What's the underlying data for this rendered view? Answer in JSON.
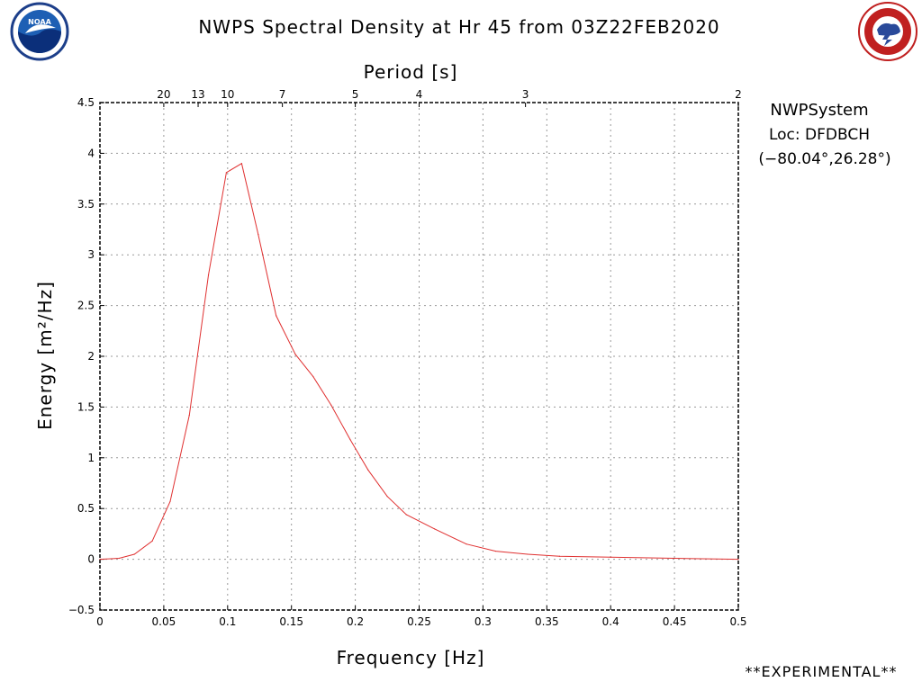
{
  "header": {
    "title": "NWPS Spectral Density at Hr 45 from 03Z22FEB2020",
    "left_logo": "noaa-logo",
    "right_logo": "nws-logo",
    "left_logo_text": "NOAA",
    "right_logo_text": "NATIONAL WEATHER SERVICE"
  },
  "info": {
    "system": "NWPSystem",
    "location": "Loc: DFDBCH",
    "coords": "(−80.04°,26.28°)"
  },
  "footer": {
    "note": "**EXPERIMENTAL**"
  },
  "chart_data": {
    "type": "line",
    "title": "NWPS Spectral Density at Hr 45 from 03Z22FEB2020",
    "xlabel": "Frequency [Hz]",
    "ylabel": "Energy [m²/Hz]",
    "x2label": "Period [s]",
    "xlim": [
      0,
      0.5
    ],
    "ylim": [
      -0.5,
      4.5
    ],
    "xticks": [
      0,
      0.05,
      0.1,
      0.15,
      0.2,
      0.25,
      0.3,
      0.35,
      0.4,
      0.45,
      0.5
    ],
    "xtick_labels": [
      "0",
      "0.05",
      "0.1",
      "0.15",
      "0.2",
      "0.25",
      "0.3",
      "0.35",
      "0.4",
      "0.45",
      "0.5"
    ],
    "yticks": [
      -0.5,
      0,
      0.5,
      1,
      1.5,
      2,
      2.5,
      3,
      3.5,
      4,
      4.5
    ],
    "ytick_labels": [
      "−0.5",
      "0",
      "0.5",
      "1",
      "1.5",
      "2",
      "2.5",
      "3",
      "3.5",
      "4",
      "4.5"
    ],
    "period_ticks": [
      {
        "freq": 0.05,
        "label": "20"
      },
      {
        "freq": 0.0769,
        "label": "13"
      },
      {
        "freq": 0.1,
        "label": "10"
      },
      {
        "freq": 0.1429,
        "label": "7"
      },
      {
        "freq": 0.2,
        "label": "5"
      },
      {
        "freq": 0.25,
        "label": "4"
      },
      {
        "freq": 0.3333,
        "label": "3"
      },
      {
        "freq": 0.5,
        "label": "2"
      }
    ],
    "grid": true,
    "color": "#e03030",
    "x": [
      0,
      0.015,
      0.027,
      0.041,
      0.055,
      0.07,
      0.085,
      0.099,
      0.111,
      0.124,
      0.138,
      0.153,
      0.167,
      0.181,
      0.196,
      0.21,
      0.225,
      0.24,
      0.262,
      0.287,
      0.31,
      0.335,
      0.36,
      0.4,
      0.45,
      0.5
    ],
    "y": [
      0,
      0.01,
      0.05,
      0.18,
      0.57,
      1.42,
      2.8,
      3.81,
      3.9,
      3.2,
      2.4,
      2.02,
      1.8,
      1.52,
      1.18,
      0.88,
      0.62,
      0.44,
      0.3,
      0.15,
      0.08,
      0.05,
      0.03,
      0.02,
      0.01,
      0.0
    ]
  }
}
